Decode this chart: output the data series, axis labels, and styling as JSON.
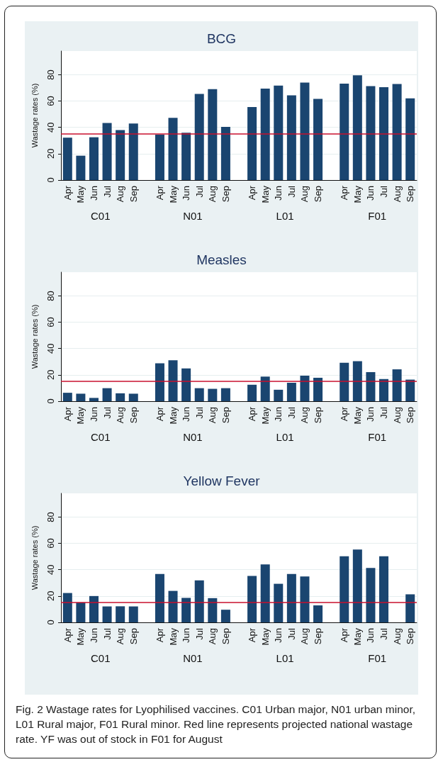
{
  "chart_data": [
    {
      "type": "bar",
      "title": "BCG",
      "ylabel": "Wastage rates (%)",
      "categories": [
        "Apr",
        "May",
        "Jun",
        "Jul",
        "Aug",
        "Sep",
        null,
        "Apr",
        "May",
        "Jun",
        "Jul",
        "Aug",
        "Sep",
        null,
        "Apr",
        "May",
        "Jun",
        "Jul",
        "Aug",
        "Sep",
        null,
        "Apr",
        "May",
        "Jun",
        "Jul",
        "Aug",
        "Sep"
      ],
      "values": [
        32.2,
        18.5,
        32.5,
        43.4,
        37.9,
        43.0,
        null,
        34.5,
        47.3,
        35.9,
        65.4,
        69.0,
        40.4,
        null,
        55.5,
        69.5,
        71.8,
        64.4,
        74.0,
        61.7,
        null,
        73.2,
        79.5,
        71.3,
        70.6,
        72.9,
        62.0
      ],
      "color": "#1a4570",
      "ylim": [
        0,
        98
      ],
      "yticks": [
        0,
        20,
        40,
        60,
        80
      ],
      "grid": "y",
      "ref_lines": [
        {
          "axis": "y",
          "value": 35,
          "color": "#c8102e"
        }
      ],
      "annotations": [
        "C01",
        "N01",
        "L01",
        "F01"
      ]
    },
    {
      "type": "bar",
      "title": "Measles",
      "ylabel": "Wastage rates (%)",
      "categories": [
        "Apr",
        "May",
        "Jun",
        "Jul",
        "Aug",
        "Sep",
        null,
        "Apr",
        "May",
        "Jun",
        "Jul",
        "Aug",
        "Sep",
        null,
        "Apr",
        "May",
        "Jun",
        "Jul",
        "Aug",
        "Sep",
        null,
        "Apr",
        "May",
        "Jun",
        "Jul",
        "Aug",
        "Sep"
      ],
      "values": [
        6.4,
        5.7,
        2.5,
        9.9,
        6.0,
        5.7,
        null,
        28.8,
        31.1,
        24.9,
        9.9,
        9.4,
        9.9,
        null,
        12.5,
        18.7,
        8.7,
        14.0,
        19.4,
        17.8,
        null,
        29.2,
        30.4,
        22.1,
        16.8,
        24.2,
        16.4
      ],
      "color": "#1a4570",
      "ylim": [
        0,
        98
      ],
      "yticks": [
        0,
        20,
        40,
        60,
        80
      ],
      "grid": "y",
      "ref_lines": [
        {
          "axis": "y",
          "value": 15,
          "color": "#c8102e"
        }
      ],
      "annotations": [
        "C01",
        "N01",
        "L01",
        "F01"
      ]
    },
    {
      "type": "bar",
      "title": "Yellow Fever",
      "ylabel": "Wastage rates (%)",
      "categories": [
        "Apr",
        "May",
        "Jun",
        "Jul",
        "Aug",
        "Sep",
        null,
        "Apr",
        "May",
        "Jun",
        "Jul",
        "Aug",
        "Sep",
        null,
        "Apr",
        "May",
        "Jun",
        "Jul",
        "Aug",
        "Sep",
        null,
        "Apr",
        "May",
        "Jun",
        "Jul",
        "Aug",
        "Sep"
      ],
      "values": [
        22.3,
        15.1,
        20.0,
        12.1,
        12.2,
        12.1,
        null,
        36.7,
        23.9,
        18.6,
        31.9,
        18.4,
        9.6,
        null,
        35.3,
        44.0,
        29.3,
        36.7,
        34.8,
        12.9,
        null,
        50.2,
        55.3,
        41.3,
        50.2,
        null,
        21.3
      ],
      "color": "#1a4570",
      "ylim": [
        0,
        98
      ],
      "yticks": [
        0,
        20,
        40,
        60,
        80
      ],
      "grid": "y",
      "ref_lines": [
        {
          "axis": "y",
          "value": 15,
          "color": "#c8102e"
        }
      ],
      "annotations": [
        "C01",
        "N01",
        "L01",
        "F01",
        "Fig. 2 Wastage rates for Lyophilised vaccines. C01 Urban major, N01 urban minor, L01 Rural major, F01 Rural minor. Red line represents projected national wastage rate. YF was out of stock in F01 for August"
      ]
    }
  ]
}
